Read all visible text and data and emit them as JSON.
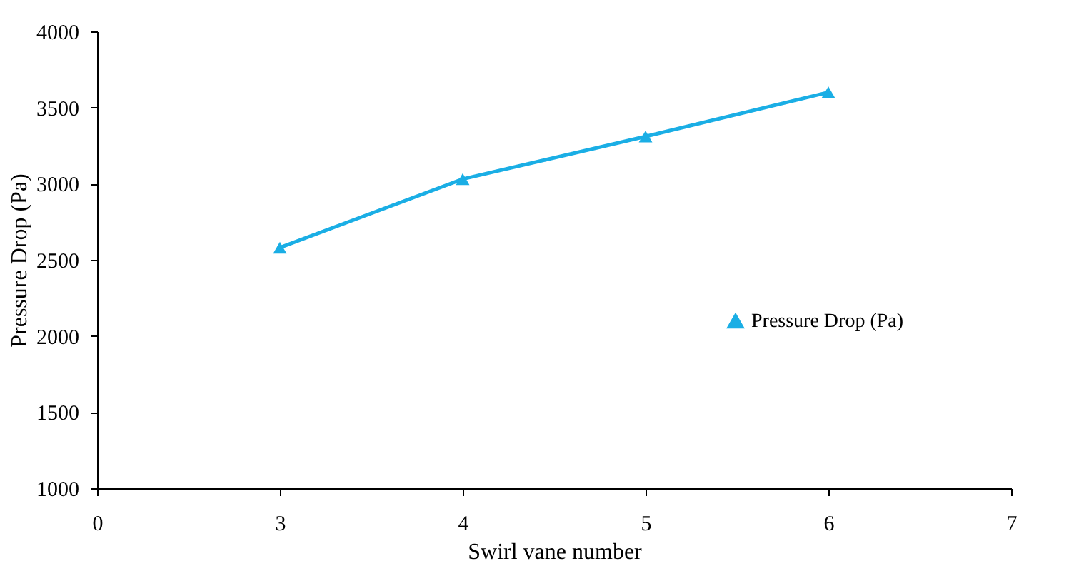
{
  "chart_data": {
    "type": "line",
    "xlabel": "Swirl vane number",
    "ylabel": "Pressure Drop (Pa)",
    "categories": [
      "0",
      "3",
      "4",
      "5",
      "6",
      "7"
    ],
    "series": [
      {
        "name": "Pressure Drop (Pa)",
        "color": "#1aaee5",
        "values": [
          null,
          2580,
          3030,
          3310,
          3600,
          null
        ]
      }
    ],
    "ylim": [
      1000,
      4000
    ],
    "yticks": [
      1000,
      1500,
      2000,
      2500,
      3000,
      3500,
      4000
    ],
    "grid": false,
    "legend": "right",
    "marker": "triangle",
    "line_style": "solid"
  }
}
